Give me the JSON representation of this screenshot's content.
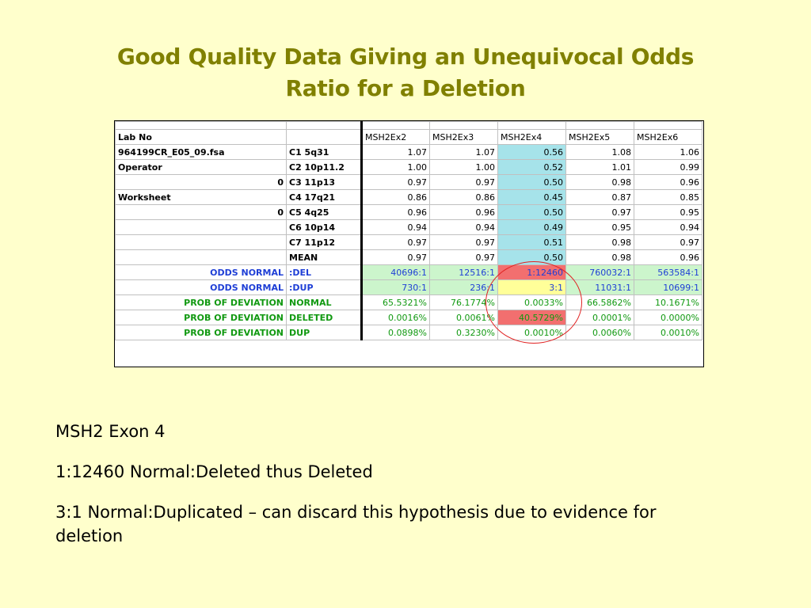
{
  "slide": {
    "title_line1": "Good Quality Data Giving an Unequivocal Odds",
    "title_line2": "Ratio for a Deletion"
  },
  "sheet": {
    "columns": [
      "MSH2Ex2",
      "MSH2Ex3",
      "MSH2Ex4",
      "MSH2Ex5",
      "MSH2Ex6"
    ],
    "rows": [
      {
        "label": "Lab No",
        "label_align": "left",
        "probe": "",
        "values": [
          "",
          "",
          "",
          "",
          ""
        ],
        "is_header": true
      },
      {
        "label": "964199CR_E05_09.fsa",
        "label_align": "left",
        "probe": "C1 5q31",
        "values": [
          "1.07",
          "1.07",
          "0.56",
          "1.08",
          "1.06"
        ]
      },
      {
        "label": "Operator",
        "label_align": "left",
        "probe": "C2 10p11.2",
        "values": [
          "1.00",
          "1.00",
          "0.52",
          "1.01",
          "0.99"
        ]
      },
      {
        "label": "0",
        "label_align": "right",
        "probe": "C3 11p13",
        "values": [
          "0.97",
          "0.97",
          "0.50",
          "0.98",
          "0.96"
        ]
      },
      {
        "label": "Worksheet",
        "label_align": "left",
        "probe": "C4 17q21",
        "values": [
          "0.86",
          "0.86",
          "0.45",
          "0.87",
          "0.85"
        ]
      },
      {
        "label": "0",
        "label_align": "right",
        "probe": "C5 4q25",
        "values": [
          "0.96",
          "0.96",
          "0.50",
          "0.97",
          "0.95"
        ]
      },
      {
        "label": "",
        "label_align": "left",
        "probe": "C6 10p14",
        "values": [
          "0.94",
          "0.94",
          "0.49",
          "0.95",
          "0.94"
        ]
      },
      {
        "label": "",
        "label_align": "left",
        "probe": "C7 11p12",
        "values": [
          "0.97",
          "0.97",
          "0.51",
          "0.98",
          "0.97"
        ]
      },
      {
        "label": "",
        "label_align": "left",
        "probe": "MEAN",
        "values": [
          "0.97",
          "0.97",
          "0.50",
          "0.98",
          "0.96"
        ]
      },
      {
        "label": "ODDS NORMAL",
        "label_align": "right",
        "probe": ":DEL",
        "values": [
          "40696:1",
          "12516:1",
          "1:12460",
          "760032:1",
          "563584:1"
        ],
        "color": "blue"
      },
      {
        "label": "ODDS NORMAL",
        "label_align": "right",
        "probe": ":DUP",
        "values": [
          "730:1",
          "236:1",
          "3:1",
          "11031:1",
          "10699:1"
        ],
        "color": "blue"
      },
      {
        "label": "PROB OF DEVIATION",
        "label_align": "right",
        "probe": "NORMAL",
        "values": [
          "65.5321%",
          "76.1774%",
          "0.0033%",
          "66.5862%",
          "10.1671%"
        ],
        "color": "green"
      },
      {
        "label": "PROB OF DEVIATION",
        "label_align": "right",
        "probe": "DELETED",
        "values": [
          "0.0016%",
          "0.0061%",
          "40.5729%",
          "0.0001%",
          "0.0000%"
        ],
        "color": "green"
      },
      {
        "label": "PROB OF DEVIATION",
        "label_align": "right",
        "probe": "DUP",
        "values": [
          "0.0898%",
          "0.3230%",
          "0.0010%",
          "0.0060%",
          "0.0010%"
        ],
        "color": "green"
      }
    ]
  },
  "notes": {
    "line1": "MSH2 Exon 4",
    "line2": "1:12460 Normal:Deleted thus Deleted",
    "line3": "3:1 Normal:Duplicated – can discard this hypothesis due to evidence for deletion"
  },
  "colors": {
    "background": "#ffffcc",
    "title": "#808000",
    "highlight_column": "#a6e3ea",
    "odds_row_fill": "#ccf5cc",
    "deleted_cell": "#f26f6f",
    "dup_cell": "#ffff99",
    "circle": "#e02020"
  }
}
